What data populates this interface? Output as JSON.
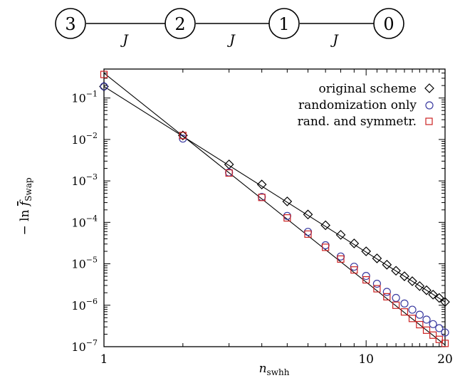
{
  "diagram": {
    "nodes": [
      "3",
      "2",
      "1",
      "0"
    ],
    "bond_labels": [
      "J",
      "J",
      "J"
    ]
  },
  "chart_data": {
    "type": "scatter",
    "xlabel_main": "n",
    "xlabel_sub": "swhh",
    "ylabel_prefix": "− ln ",
    "ylabel_main": "f",
    "ylabel_sub": "Swap",
    "xscale": "log",
    "yscale": "log",
    "xlim": [
      1,
      20
    ],
    "ylim": [
      1e-07,
      0.5
    ],
    "x_ticks": [
      {
        "value": 1,
        "label": "1"
      },
      {
        "value": 10,
        "label": "10"
      },
      {
        "value": 20,
        "label": "20"
      }
    ],
    "y_ticks": [
      {
        "value": 1e-07,
        "base": "10",
        "exp": "−7"
      },
      {
        "value": 1e-06,
        "base": "10",
        "exp": "−6"
      },
      {
        "value": 1e-05,
        "base": "10",
        "exp": "−5"
      },
      {
        "value": 0.0001,
        "base": "10",
        "exp": "−4"
      },
      {
        "value": 0.001,
        "base": "10",
        "exp": "−3"
      },
      {
        "value": 0.01,
        "base": "10",
        "exp": "−2"
      },
      {
        "value": 0.1,
        "base": "10",
        "exp": "−1"
      }
    ],
    "legend_position": "top-right",
    "series": [
      {
        "name": "original scheme",
        "marker": "diamond",
        "color": "#000000",
        "x": [
          1,
          2,
          3,
          4,
          5,
          6,
          7,
          8,
          9,
          10,
          11,
          12,
          13,
          14,
          15,
          16,
          17,
          18,
          19,
          20
        ],
        "y": [
          0.19,
          0.0125,
          0.0025,
          0.00082,
          0.00032,
          0.000155,
          8.5e-05,
          5e-05,
          3.1e-05,
          2e-05,
          1.35e-05,
          9.5e-06,
          6.8e-06,
          5e-06,
          3.8e-06,
          2.9e-06,
          2.3e-06,
          1.8e-06,
          1.5e-06,
          1.2e-06
        ]
      },
      {
        "name": "randomization only",
        "marker": "circle",
        "color": "#3a3aa0",
        "x": [
          1,
          2,
          3,
          4,
          5,
          6,
          7,
          8,
          9,
          10,
          11,
          12,
          13,
          14,
          15,
          16,
          17,
          18,
          19,
          20
        ],
        "y": [
          0.19,
          0.0105,
          0.0016,
          0.00041,
          0.000143,
          5.9e-05,
          2.8e-05,
          1.5e-05,
          8.5e-06,
          5.1e-06,
          3.3e-06,
          2.1e-06,
          1.5e-06,
          1.1e-06,
          7.8e-07,
          5.9e-07,
          4.5e-07,
          3.5e-07,
          2.8e-07,
          2.2e-07
        ]
      },
      {
        "name": "rand. and symmetr.",
        "marker": "square",
        "color": "#cc2222",
        "x": [
          1,
          2,
          3,
          4,
          5,
          6,
          7,
          8,
          9,
          10,
          11,
          12,
          13,
          14,
          15,
          16,
          17,
          18,
          19,
          20
        ],
        "y": [
          0.37,
          0.0125,
          0.00155,
          0.0004,
          0.000128,
          5.2e-05,
          2.5e-05,
          1.3e-05,
          7.1e-06,
          4.1e-06,
          2.5e-06,
          1.6e-06,
          1e-06,
          6.9e-07,
          4.8e-07,
          3.4e-07,
          2.5e-07,
          1.9e-07,
          1.5e-07,
          1.2e-07
        ]
      }
    ],
    "fit_lines": [
      {
        "for": "original scheme",
        "x": [
          1,
          20
        ],
        "y": [
          0.19,
          1.2e-06
        ]
      },
      {
        "for": "rand. and symmetr.",
        "x": [
          1,
          20
        ],
        "y": [
          0.4,
          1.1e-07
        ]
      }
    ]
  }
}
